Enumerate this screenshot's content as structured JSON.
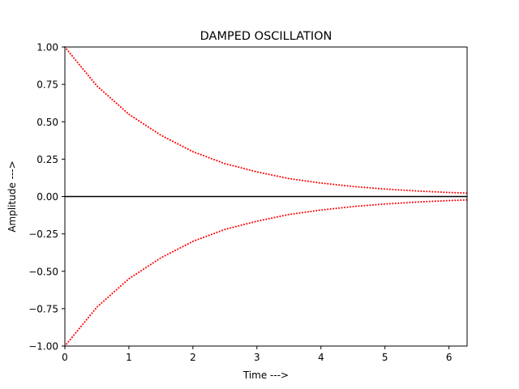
{
  "chart_data": {
    "type": "line",
    "title": "DAMPED OSCILLATION",
    "xlabel": "Time --->",
    "ylabel": "Amplitude --->",
    "xlim": [
      0,
      6.283
    ],
    "ylim": [
      -1.0,
      1.0
    ],
    "x_ticks": [
      0,
      1,
      2,
      3,
      4,
      5,
      6
    ],
    "x_tick_labels": [
      "0",
      "1",
      "2",
      "3",
      "4",
      "5",
      "6"
    ],
    "y_ticks": [
      1.0,
      0.75,
      0.5,
      0.25,
      0.0,
      -0.25,
      -0.5,
      -0.75,
      -1.0
    ],
    "y_tick_labels": [
      "1.00",
      "0.75",
      "0.50",
      "0.25",
      "0.00",
      "−0.25",
      "−0.50",
      "−0.75",
      "−1.00"
    ],
    "grid": false,
    "x": [
      0,
      0.5,
      1.0,
      1.5,
      2.0,
      2.5,
      3.0,
      3.5,
      4.0,
      4.5,
      5.0,
      5.5,
      6.0,
      6.283
    ],
    "series": [
      {
        "line_style": "dotted",
        "color": "#ff0000",
        "values": [
          1.0,
          0.74,
          0.55,
          0.41,
          0.3,
          0.22,
          0.165,
          0.12,
          0.09,
          0.067,
          0.05,
          0.037,
          0.027,
          0.023
        ]
      },
      {
        "line_style": "dotted",
        "color": "#ff0000",
        "values": [
          -1.0,
          -0.74,
          -0.55,
          -0.41,
          -0.3,
          -0.22,
          -0.165,
          -0.12,
          -0.09,
          -0.067,
          -0.05,
          -0.037,
          -0.027,
          -0.023
        ]
      },
      {
        "line_style": "solid",
        "color": "#000000",
        "values": [
          0,
          0,
          0,
          0,
          0,
          0,
          0,
          0,
          0,
          0,
          0,
          0,
          0,
          0
        ]
      }
    ]
  }
}
